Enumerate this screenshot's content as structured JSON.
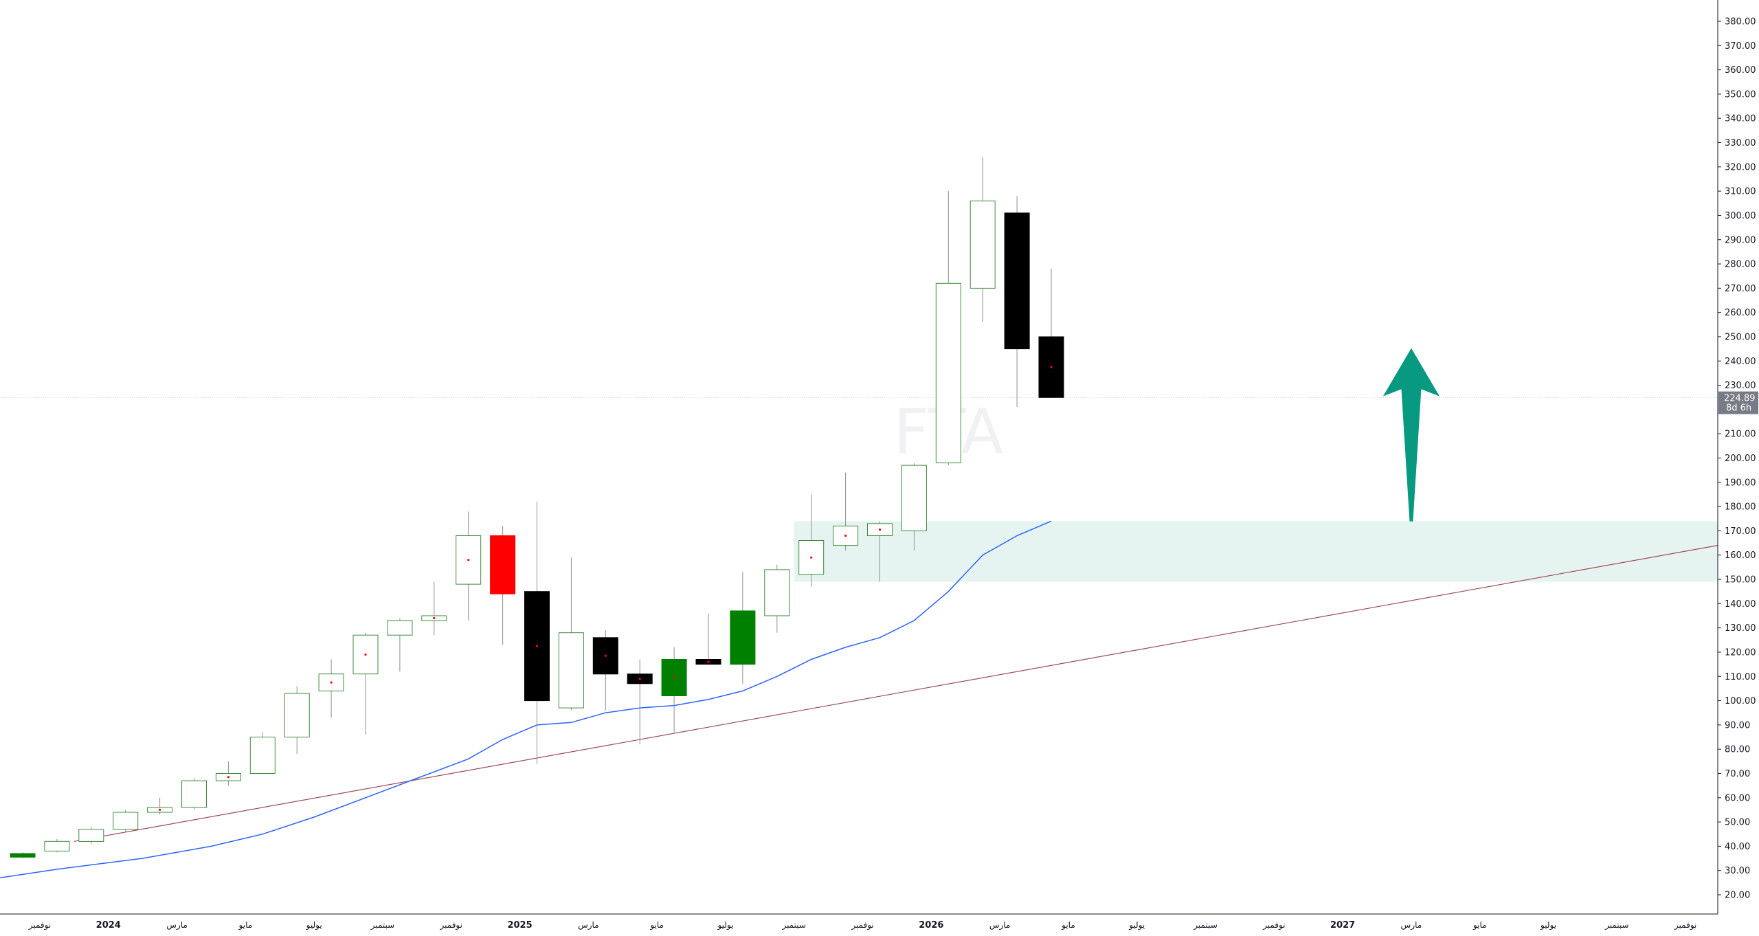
{
  "chart_data": {
    "type": "candlestick",
    "symbol_watermark": "FTA",
    "grid": false,
    "y_axis": {
      "position": "right",
      "min": 20,
      "max": 380,
      "step": 10,
      "tick_labels": [
        "20.00",
        "30.00",
        "40.00",
        "50.00",
        "60.00",
        "70.00",
        "80.00",
        "90.00",
        "100.00",
        "110.00",
        "120.00",
        "130.00",
        "140.00",
        "150.00",
        "160.00",
        "170.00",
        "180.00",
        "190.00",
        "200.00",
        "210.00",
        "230.00",
        "240.00",
        "250.00",
        "260.00",
        "270.00",
        "280.00",
        "290.00",
        "300.00",
        "310.00",
        "320.00",
        "330.00",
        "340.00",
        "350.00",
        "360.00",
        "370.00",
        "380.00"
      ]
    },
    "current_price": {
      "label": "224.89",
      "countdown": "8d 6h",
      "value": 224.89,
      "color": "#787b86"
    },
    "x_axis": {
      "bars_total": 51,
      "labels": [
        {
          "i": 0.5,
          "text": "نوفمبر"
        },
        {
          "i": 2.5,
          "text": "2024",
          "year": true
        },
        {
          "i": 4.5,
          "text": "مارس"
        },
        {
          "i": 6.5,
          "text": "مايو"
        },
        {
          "i": 8.5,
          "text": "يوليو"
        },
        {
          "i": 10.5,
          "text": "سبتمبر"
        },
        {
          "i": 12.5,
          "text": "نوفمبر"
        },
        {
          "i": 14.5,
          "text": "2025",
          "year": true
        },
        {
          "i": 16.5,
          "text": "مارس"
        },
        {
          "i": 18.5,
          "text": "مايو"
        },
        {
          "i": 20.5,
          "text": "يوليو"
        },
        {
          "i": 22.5,
          "text": "سبتمبر"
        },
        {
          "i": 24.5,
          "text": "نوفمبر"
        },
        {
          "i": 26.5,
          "text": "2026",
          "year": true
        },
        {
          "i": 28.5,
          "text": "مارس"
        },
        {
          "i": 30.5,
          "text": "مايو"
        },
        {
          "i": 32.5,
          "text": "يوليو"
        },
        {
          "i": 34.5,
          "text": "سبتمبر"
        },
        {
          "i": 36.5,
          "text": "نوفمبر"
        },
        {
          "i": 38.5,
          "text": "2027",
          "year": true
        },
        {
          "i": 40.5,
          "text": "مارس"
        },
        {
          "i": 42.5,
          "text": "مايو"
        },
        {
          "i": 44.5,
          "text": "يوليو"
        },
        {
          "i": 46.5,
          "text": "سبتمبر"
        },
        {
          "i": 48.5,
          "text": "نوفمبر"
        }
      ]
    },
    "candles": [
      {
        "i": 0,
        "o": 35.5,
        "h": 37.5,
        "l": 35,
        "c": 37,
        "color": "#008000"
      },
      {
        "i": 1,
        "o": 38,
        "h": 43,
        "l": 37.5,
        "c": 42
      },
      {
        "i": 2,
        "o": 42,
        "h": 48,
        "l": 41,
        "c": 47
      },
      {
        "i": 3,
        "o": 47,
        "h": 55,
        "l": 46,
        "c": 54
      },
      {
        "i": 4,
        "o": 54,
        "h": 60,
        "l": 53,
        "c": 56,
        "dot": true
      },
      {
        "i": 5,
        "o": 56,
        "h": 68,
        "l": 55,
        "c": 67
      },
      {
        "i": 6,
        "o": 67,
        "h": 75,
        "l": 65,
        "c": 70,
        "dot": true
      },
      {
        "i": 7,
        "o": 70,
        "h": 87,
        "l": 70,
        "c": 85
      },
      {
        "i": 8,
        "o": 85,
        "h": 106,
        "l": 78,
        "c": 103
      },
      {
        "i": 9,
        "o": 104,
        "h": 117,
        "l": 93,
        "c": 111,
        "dot": true
      },
      {
        "i": 10,
        "o": 111,
        "h": 128,
        "l": 86,
        "c": 127,
        "dot": true
      },
      {
        "i": 11,
        "o": 127,
        "h": 134,
        "l": 112,
        "c": 133
      },
      {
        "i": 12,
        "o": 133,
        "h": 149,
        "l": 127,
        "c": 135,
        "dot": true
      },
      {
        "i": 13,
        "o": 148,
        "h": 178,
        "l": 133,
        "c": 168,
        "dot": true
      },
      {
        "i": 14,
        "o": 168,
        "h": 172,
        "l": 123,
        "c": 144,
        "color": "#ff0000"
      },
      {
        "i": 15,
        "o": 145,
        "h": 182,
        "l": 74,
        "c": 100,
        "color": "#000000",
        "dot": true
      },
      {
        "i": 16,
        "o": 97,
        "h": 159,
        "l": 96,
        "c": 128
      },
      {
        "i": 17,
        "o": 126,
        "h": 129,
        "l": 96,
        "c": 111,
        "color": "#000000",
        "dot": true
      },
      {
        "i": 18,
        "o": 111,
        "h": 117,
        "l": 82,
        "c": 107,
        "color": "#000000",
        "dot": true
      },
      {
        "i": 19,
        "o": 102,
        "h": 122,
        "l": 87,
        "c": 117,
        "color": "#008000",
        "dot": true
      },
      {
        "i": 20,
        "o": 117,
        "h": 136,
        "l": 115,
        "c": 115,
        "color": "#000000",
        "dot": true
      },
      {
        "i": 21,
        "o": 115,
        "h": 153,
        "l": 107,
        "c": 137,
        "color": "#008000"
      },
      {
        "i": 22,
        "o": 135,
        "h": 156,
        "l": 128,
        "c": 154
      },
      {
        "i": 23,
        "o": 152,
        "h": 185,
        "l": 147,
        "c": 166,
        "dot": true
      },
      {
        "i": 24,
        "o": 164,
        "h": 194,
        "l": 162,
        "c": 172,
        "dot": true
      },
      {
        "i": 25,
        "o": 168,
        "h": 174,
        "l": 149,
        "c": 173,
        "dot": true
      },
      {
        "i": 26,
        "o": 170,
        "h": 198,
        "l": 162,
        "c": 197
      },
      {
        "i": 27,
        "o": 198,
        "h": 310,
        "l": 197,
        "c": 272
      },
      {
        "i": 28,
        "o": 270,
        "h": 324,
        "l": 256,
        "c": 306
      },
      {
        "i": 29,
        "o": 301,
        "h": 308,
        "l": 221,
        "c": 245,
        "color": "#000000"
      },
      {
        "i": 30,
        "o": 250,
        "h": 278,
        "l": 225,
        "c": 225,
        "color": "#000000",
        "dot": true
      }
    ],
    "moving_average": {
      "color": "#2962ff",
      "points": [
        [
          -1,
          27
        ],
        [
          1,
          30.5
        ],
        [
          3.5,
          35
        ],
        [
          5.5,
          40
        ],
        [
          7,
          45
        ],
        [
          8.5,
          52
        ],
        [
          10,
          60
        ],
        [
          11.5,
          68
        ],
        [
          13,
          76
        ],
        [
          14,
          84
        ],
        [
          15,
          90
        ],
        [
          16,
          91
        ],
        [
          17,
          95
        ],
        [
          18,
          97
        ],
        [
          19,
          98
        ],
        [
          20,
          100.5
        ],
        [
          21,
          104
        ],
        [
          22,
          110
        ],
        [
          23,
          117
        ],
        [
          24,
          122
        ],
        [
          25,
          126
        ],
        [
          26,
          133
        ],
        [
          27,
          145
        ],
        [
          28,
          160
        ],
        [
          29,
          168
        ],
        [
          30,
          174
        ]
      ]
    },
    "trendline": {
      "color": "#9c4a56",
      "from": [
        1.5,
        42
      ],
      "to": [
        51,
        164
      ]
    },
    "zone": {
      "from_i": 22.5,
      "to_i": 51,
      "low": 149,
      "high": 174,
      "color": "#e6f4f1"
    },
    "arrow": {
      "i": 40.5,
      "bottom": 174,
      "top": 245,
      "color": "#089981"
    }
  }
}
